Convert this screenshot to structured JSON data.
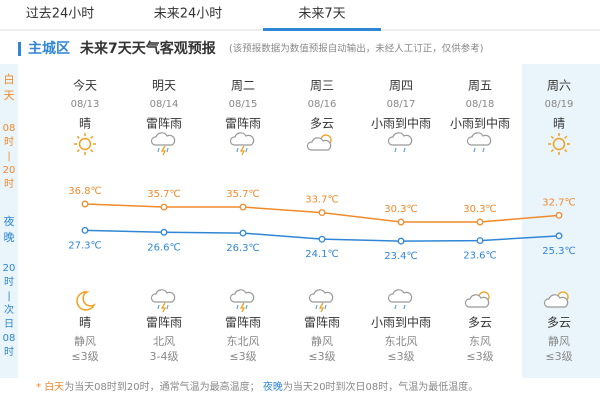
{
  "tabs": [
    "过去24小时",
    "未来24小时",
    "未来7天"
  ],
  "header": {
    "area": "主城区",
    "title": "未来7天天气客观预报",
    "note": "(该预报数据为数值预报自动输出，未经人工订正，仅供参考)"
  },
  "side": {
    "day": [
      "白",
      "天"
    ],
    "day_time": [
      "08",
      "时",
      "|",
      "20",
      "时"
    ],
    "night": [
      "夜",
      "晚"
    ],
    "night_time": [
      "20",
      "时",
      "|",
      "次",
      "日",
      "08",
      "时"
    ]
  },
  "days": [
    {
      "name": "今天",
      "date": "08/13",
      "day_weather": "晴",
      "high": {
        "value": 36.8,
        "label": "36.8℃"
      },
      "low": {
        "value": 27.3,
        "label": "27.3℃"
      },
      "night_weather": "晴",
      "wind_dir": "静风",
      "wind_level": "≤3级"
    },
    {
      "name": "明天",
      "date": "08/14",
      "day_weather": "雷阵雨",
      "high": {
        "value": 35.7,
        "label": "35.7℃"
      },
      "low": {
        "value": 26.6,
        "label": "26.6℃"
      },
      "night_weather": "雷阵雨",
      "wind_dir": "北风",
      "wind_level": "3-4级"
    },
    {
      "name": "周二",
      "date": "08/15",
      "day_weather": "雷阵雨",
      "high": {
        "value": 35.7,
        "label": "35.7℃"
      },
      "low": {
        "value": 26.3,
        "label": "26.3℃"
      },
      "night_weather": "雷阵雨",
      "wind_dir": "东北风",
      "wind_level": "≤3级"
    },
    {
      "name": "周三",
      "date": "08/16",
      "day_weather": "多云",
      "high": {
        "value": 33.7,
        "label": "33.7℃"
      },
      "low": {
        "value": 24.1,
        "label": "24.1℃"
      },
      "night_weather": "雷阵雨",
      "wind_dir": "静风",
      "wind_level": "≤3级"
    },
    {
      "name": "周四",
      "date": "08/17",
      "day_weather": "小雨到中雨",
      "high": {
        "value": 30.3,
        "label": "30.3℃"
      },
      "low": {
        "value": 23.4,
        "label": "23.4℃"
      },
      "night_weather": "小雨到中雨",
      "wind_dir": "东北风",
      "wind_level": "≤3级"
    },
    {
      "name": "周五",
      "date": "08/18",
      "day_weather": "小雨到中雨",
      "high": {
        "value": 30.3,
        "label": "30.3℃"
      },
      "low": {
        "value": 23.6,
        "label": "23.6℃"
      },
      "night_weather": "多云",
      "wind_dir": "东风",
      "wind_level": "≤3级"
    },
    {
      "name": "周六",
      "date": "08/19",
      "day_weather": "晴",
      "high": {
        "value": 32.7,
        "label": "32.7℃"
      },
      "low": {
        "value": 25.3,
        "label": "25.3℃"
      },
      "night_weather": "多云",
      "wind_dir": "静风",
      "wind_level": "≤3级"
    }
  ],
  "footer": {
    "star": "*",
    "day": "白天",
    "day_text": "为当天08时到20时，通常气温为最高温度；",
    "night": "夜晚",
    "night_text": "为当天20时到次日08时，气温为最低温度。"
  }
}
